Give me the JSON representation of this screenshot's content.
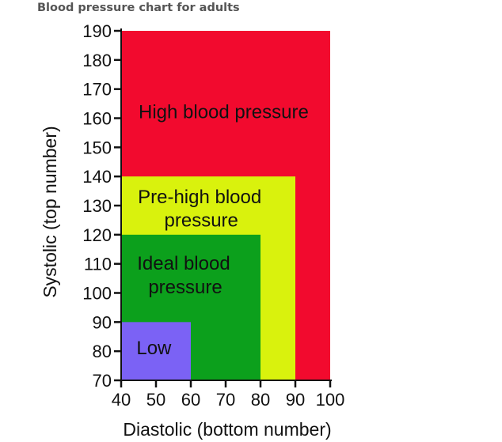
{
  "page": {
    "title": "Blood pressure chart for adults"
  },
  "chart_data": {
    "type": "area",
    "title": "Blood pressure chart for adults",
    "xlabel": "Diastolic (bottom number)",
    "ylabel": "Systolic (top number)",
    "xlim": [
      40,
      100
    ],
    "ylim": [
      70,
      190
    ],
    "x_ticks": [
      40,
      50,
      60,
      70,
      80,
      90,
      100
    ],
    "y_ticks": [
      70,
      80,
      90,
      100,
      110,
      120,
      130,
      140,
      150,
      160,
      170,
      180,
      190
    ],
    "regions": [
      {
        "name": "High blood pressure",
        "x_max": 100,
        "y_max": 190,
        "color": "#f20a2e"
      },
      {
        "name": "Pre-high blood pressure",
        "x_max": 90,
        "y_max": 140,
        "color": "#d9f20d"
      },
      {
        "name": "Ideal blood pressure",
        "x_max": 80,
        "y_max": 120,
        "color": "#0ca01c"
      },
      {
        "name": "Low",
        "x_max": 60,
        "y_max": 90,
        "color": "#7b62f5"
      }
    ],
    "region_labels": [
      {
        "lines": [
          "High blood pressure"
        ]
      },
      {
        "lines": [
          "Pre-high blood",
          "pressure"
        ]
      },
      {
        "lines": [
          "Ideal blood",
          "pressure"
        ]
      },
      {
        "lines": [
          "Low"
        ]
      }
    ],
    "grid": false,
    "legend": "none"
  }
}
